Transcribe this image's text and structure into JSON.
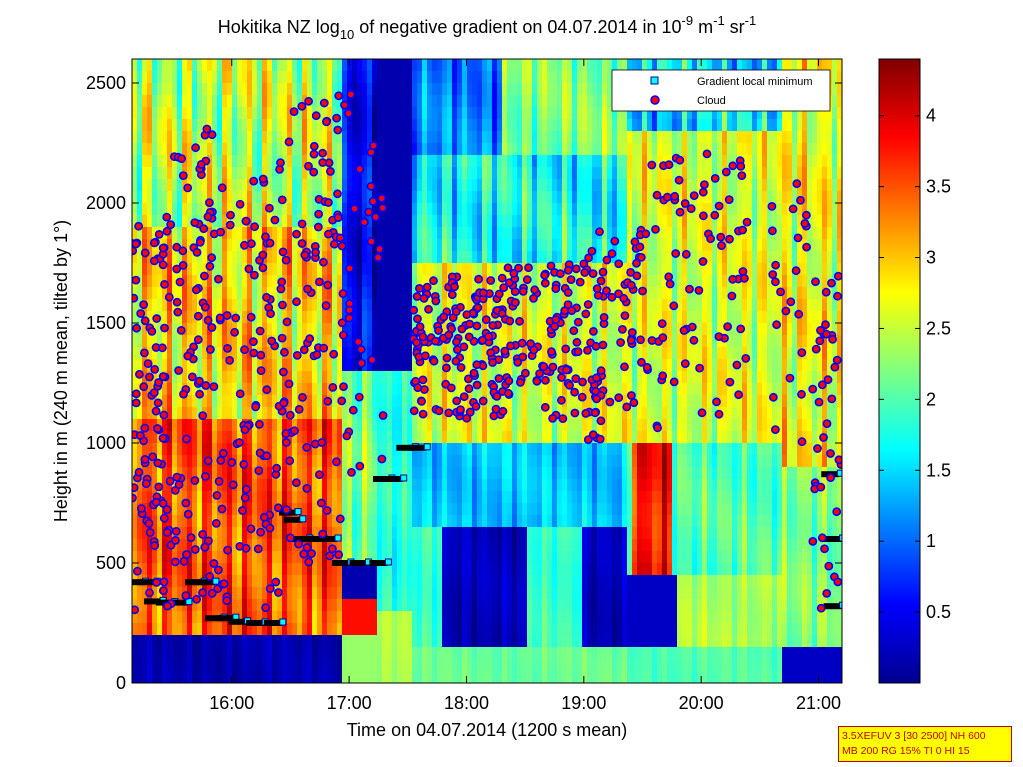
{
  "chart_data": {
    "type": "heatmap",
    "title": {
      "prefix": "Hokitika NZ log",
      "log_base": "10",
      "middle": " of negative gradient on 04.07.2014 in 10",
      "exp1": "-9",
      "unit_m": " m",
      "exp2": "-1",
      "unit_sr": " sr",
      "exp3": "-1"
    },
    "xlabel": "Time on 04.07.2014 (1200 s mean)",
    "ylabel": "Height in m (240 m mean, tilted by 1°)",
    "x_ticks": [
      "16:00",
      "17:00",
      "18:00",
      "19:00",
      "20:00",
      "21:00"
    ],
    "x_tick_hours": [
      16,
      17,
      18,
      19,
      20,
      21
    ],
    "xlim_hours": [
      15.15,
      21.2
    ],
    "y_ticks": [
      0,
      500,
      1000,
      1500,
      2000,
      2500
    ],
    "ylim": [
      0,
      2600
    ],
    "colorbar": {
      "ticks": [
        "0.5",
        "1",
        "1.5",
        "2",
        "2.5",
        "3",
        "3.5",
        "4"
      ],
      "tick_values": [
        0.5,
        1,
        1.5,
        2,
        2.5,
        3,
        3.5,
        4
      ],
      "range": [
        0,
        4.4
      ],
      "colormap": "jet"
    },
    "legend": {
      "placement": "top-right",
      "entries": [
        {
          "label": "Gradient local minimum",
          "marker": "square",
          "color": "#00ffff",
          "edge": "#0000a0"
        },
        {
          "label": "Cloud",
          "marker": "circle",
          "color": "#ff0000",
          "edge": "#0000ff"
        }
      ]
    },
    "gradient_local_minimum": [
      {
        "t": 15.18,
        "h": 420
      },
      {
        "t": 15.28,
        "h": 420
      },
      {
        "t": 15.33,
        "h": 340
      },
      {
        "t": 15.43,
        "h": 335
      },
      {
        "t": 15.55,
        "h": 335
      },
      {
        "t": 15.68,
        "h": 420
      },
      {
        "t": 15.78,
        "h": 420
      },
      {
        "t": 15.85,
        "h": 270
      },
      {
        "t": 15.95,
        "h": 270
      },
      {
        "t": 16.05,
        "h": 255
      },
      {
        "t": 16.2,
        "h": 250
      },
      {
        "t": 16.35,
        "h": 250
      },
      {
        "t": 16.48,
        "h": 710
      },
      {
        "t": 16.52,
        "h": 680
      },
      {
        "t": 16.58,
        "h": 600
      },
      {
        "t": 16.7,
        "h": 600
      },
      {
        "t": 16.82,
        "h": 600
      },
      {
        "t": 16.93,
        "h": 500
      },
      {
        "t": 17.08,
        "h": 500
      },
      {
        "t": 17.25,
        "h": 500
      },
      {
        "t": 17.28,
        "h": 850
      },
      {
        "t": 17.38,
        "h": 850
      },
      {
        "t": 17.48,
        "h": 980
      },
      {
        "t": 17.58,
        "h": 980
      },
      {
        "t": 21.12,
        "h": 320
      },
      {
        "t": 21.12,
        "h": 600
      },
      {
        "t": 21.1,
        "h": 870
      }
    ],
    "cloud_clusters": [
      {
        "t": [
          15.15,
          15.45
        ],
        "h": [
          300,
          1950
        ],
        "n": 90
      },
      {
        "t": [
          15.45,
          15.85
        ],
        "h": [
          300,
          2330
        ],
        "n": 95
      },
      {
        "t": [
          15.85,
          16.4
        ],
        "h": [
          280,
          2150
        ],
        "n": 95
      },
      {
        "t": [
          16.4,
          16.95
        ],
        "h": [
          500,
          2450
        ],
        "n": 110
      },
      {
        "t": [
          16.95,
          17.3
        ],
        "h": [
          800,
          2500
        ],
        "n": 35
      },
      {
        "t": [
          17.55,
          18.35
        ],
        "h": [
          1100,
          1700
        ],
        "n": 160
      },
      {
        "t": [
          18.35,
          19.0
        ],
        "h": [
          1100,
          1750
        ],
        "n": 100
      },
      {
        "t": [
          19.0,
          19.5
        ],
        "h": [
          1000,
          1900
        ],
        "n": 80
      },
      {
        "t": [
          19.5,
          19.95
        ],
        "h": [
          1000,
          2200
        ],
        "n": 40
      },
      {
        "t": [
          19.95,
          20.4
        ],
        "h": [
          1000,
          2250
        ],
        "n": 40
      },
      {
        "t": [
          20.6,
          20.9
        ],
        "h": [
          1000,
          2100
        ],
        "n": 25
      },
      {
        "t": [
          20.95,
          21.2
        ],
        "h": [
          300,
          1750
        ],
        "n": 40
      }
    ],
    "info_box": [
      "3.5XEFUV 3 [30 2500] NH 600",
      "MB 200 RG 15% TI 0 HI 15"
    ]
  }
}
